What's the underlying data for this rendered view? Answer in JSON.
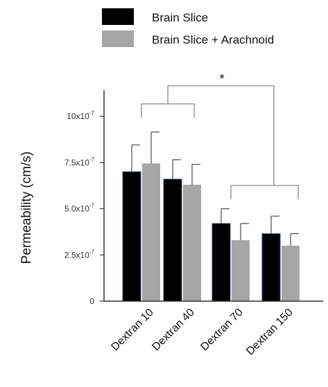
{
  "chart_data": {
    "type": "bar",
    "xlabel": "",
    "ylabel": "Permeability (cm/s)",
    "ylim": [
      0,
      1.25e-06
    ],
    "yticks": [
      {
        "value": 0,
        "base": "0",
        "exp": ""
      },
      {
        "value": 2.5e-07,
        "base": "2.5x10",
        "exp": "-7"
      },
      {
        "value": 5e-07,
        "base": "5.0x10",
        "exp": "-7"
      },
      {
        "value": 7.5e-07,
        "base": "7.5x10",
        "exp": "-7"
      },
      {
        "value": 1e-06,
        "base": "10x10",
        "exp": "-7"
      }
    ],
    "categories": [
      "Dextran 10",
      "Dextran 40",
      "Dextran 70",
      "Dextran 150"
    ],
    "series": [
      {
        "name": "Brain Slice",
        "color": "#000000",
        "values": [
          7e-07,
          6.6e-07,
          4.2e-07,
          3.65e-07
        ],
        "errors": [
          1.45e-07,
          1.05e-07,
          8e-08,
          9.5e-08
        ]
      },
      {
        "name": "Brain Slice + Arachnoid",
        "color": "#a6a6a6",
        "values": [
          7.45e-07,
          6.3e-07,
          3.3e-07,
          3e-07
        ],
        "errors": [
          1.7e-07,
          1.1e-07,
          9e-08,
          6.5e-08
        ]
      }
    ],
    "legend": {
      "placement": "top"
    },
    "significance": {
      "label": "*"
    }
  }
}
